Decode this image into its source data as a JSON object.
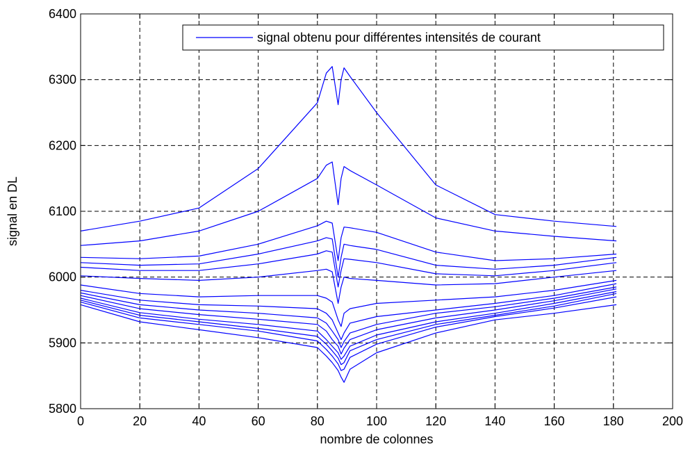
{
  "chart_data": {
    "type": "line",
    "xlabel": "nombre de colonnes",
    "ylabel": "signal en DL",
    "xlim": [
      0,
      200
    ],
    "ylim": [
      5800,
      6400
    ],
    "xticks": [
      0,
      20,
      40,
      60,
      80,
      100,
      120,
      140,
      160,
      180,
      200
    ],
    "yticks": [
      5800,
      5900,
      6000,
      6100,
      6200,
      6300,
      6400
    ],
    "grid": true,
    "legend": {
      "position": "top-right",
      "entries": [
        "signal obtenu pour différentes intensités de courant"
      ]
    },
    "series_color": "#0000ff",
    "x": [
      0,
      20,
      40,
      60,
      80,
      83,
      85,
      87,
      88,
      89,
      91,
      100,
      120,
      140,
      160,
      181
    ],
    "series": [
      {
        "values": [
          6070,
          6085,
          6105,
          6165,
          6265,
          6310,
          6320,
          6262,
          6300,
          6318,
          6305,
          6250,
          6140,
          6095,
          6085,
          6077
        ]
      },
      {
        "values": [
          6048,
          6055,
          6070,
          6100,
          6150,
          6170,
          6175,
          6110,
          6150,
          6168,
          6162,
          6140,
          6090,
          6070,
          6062,
          6055
        ]
      },
      {
        "values": [
          6030,
          6028,
          6032,
          6050,
          6078,
          6085,
          6082,
          6025,
          6060,
          6076,
          6075,
          6068,
          6038,
          6025,
          6028,
          6035
        ]
      },
      {
        "values": [
          6022,
          6018,
          6020,
          6035,
          6055,
          6060,
          6058,
          6000,
          6030,
          6050,
          6048,
          6042,
          6018,
          6012,
          6018,
          6030
        ]
      },
      {
        "values": [
          6015,
          6010,
          6010,
          6020,
          6035,
          6040,
          6038,
          5985,
          6010,
          6028,
          6027,
          6022,
          6005,
          6002,
          6010,
          6022
        ]
      },
      {
        "values": [
          6002,
          5998,
          5995,
          6000,
          6010,
          6012,
          6008,
          5960,
          5985,
          6000,
          5998,
          5995,
          5988,
          5990,
          6000,
          6010
        ]
      },
      {
        "values": [
          5988,
          5975,
          5970,
          5972,
          5972,
          5968,
          5962,
          5935,
          5925,
          5945,
          5952,
          5960,
          5965,
          5970,
          5980,
          5995
        ]
      },
      {
        "values": [
          5980,
          5965,
          5958,
          5956,
          5952,
          5945,
          5935,
          5915,
          5905,
          5915,
          5930,
          5940,
          5950,
          5960,
          5972,
          5990
        ]
      },
      {
        "values": [
          5976,
          5958,
          5950,
          5945,
          5938,
          5930,
          5918,
          5905,
          5893,
          5902,
          5915,
          5928,
          5945,
          5955,
          5968,
          5985
        ]
      },
      {
        "values": [
          5972,
          5952,
          5943,
          5936,
          5928,
          5918,
          5905,
          5895,
          5883,
          5892,
          5905,
          5920,
          5938,
          5950,
          5964,
          5982
        ]
      },
      {
        "values": [
          5968,
          5946,
          5936,
          5928,
          5918,
          5905,
          5895,
          5885,
          5875,
          5880,
          5895,
          5912,
          5932,
          5945,
          5960,
          5978
        ]
      },
      {
        "values": [
          5965,
          5942,
          5932,
          5922,
          5910,
          5898,
          5888,
          5877,
          5867,
          5870,
          5888,
          5905,
          5928,
          5942,
          5956,
          5975
        ]
      },
      {
        "values": [
          5962,
          5938,
          5928,
          5918,
          5903,
          5890,
          5880,
          5868,
          5858,
          5860,
          5878,
          5898,
          5924,
          5940,
          5953,
          5970
        ]
      },
      {
        "values": [
          5958,
          5932,
          5920,
          5908,
          5893,
          5880,
          5870,
          5858,
          5848,
          5840,
          5860,
          5885,
          5915,
          5935,
          5945,
          5958
        ]
      }
    ]
  }
}
